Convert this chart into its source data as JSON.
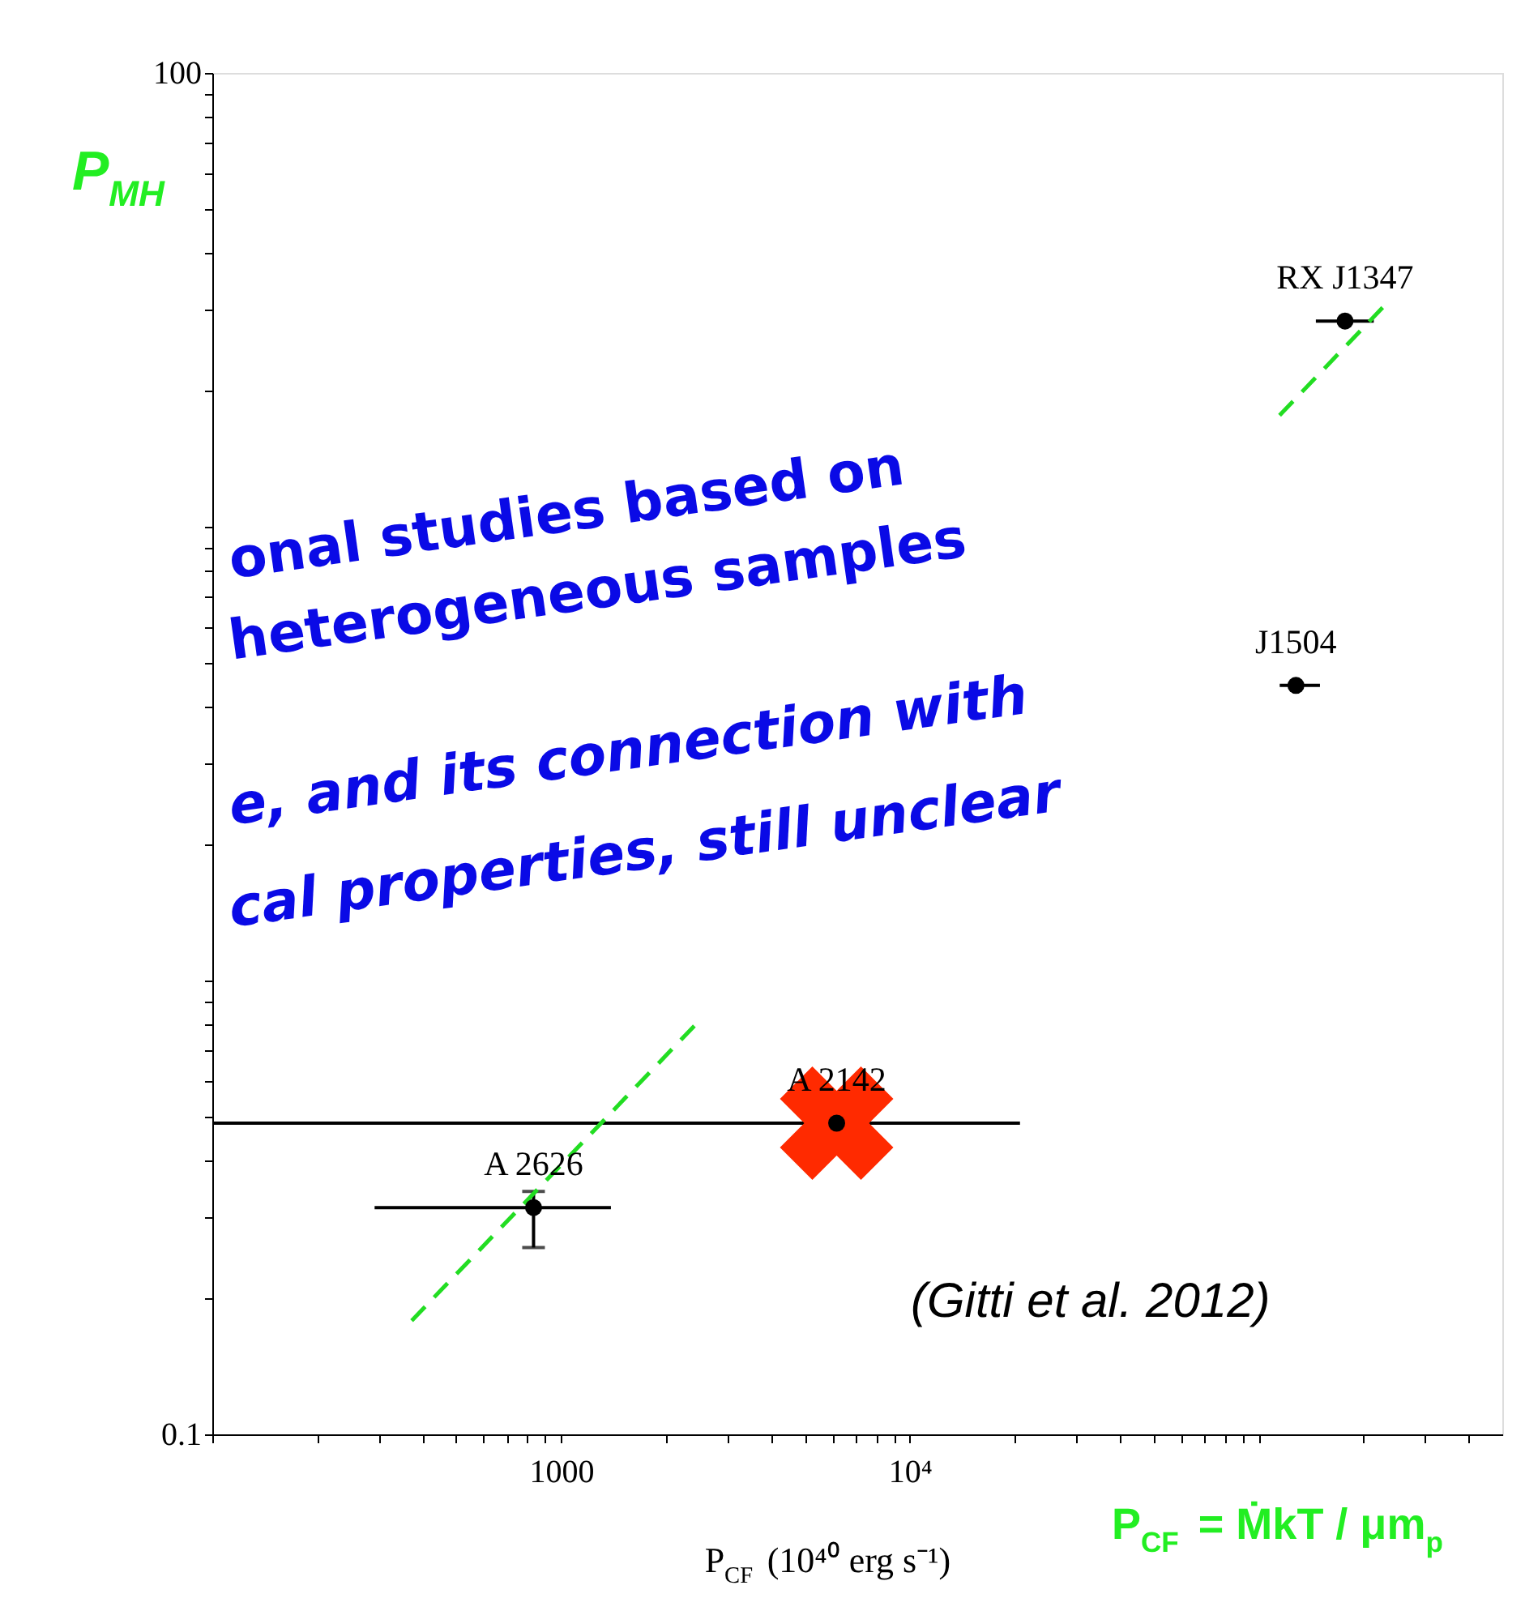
{
  "chart_data": {
    "type": "scatter",
    "xlabel": "P$_{CF}$ (10⁴⁰ erg s⁻¹)",
    "ylabel": "P$_{MH}$",
    "log": "xy",
    "xlim": [
      100,
      500000
    ],
    "xticks": [
      {
        "value": 100,
        "label": null
      },
      {
        "value": 200,
        "label": null
      },
      {
        "value": 300,
        "label": null
      },
      {
        "value": 400,
        "label": null
      },
      {
        "value": 500,
        "label": null
      },
      {
        "value": 600,
        "label": null
      },
      {
        "value": 700,
        "label": null
      },
      {
        "value": 800,
        "label": null
      },
      {
        "value": 900,
        "label": null
      },
      1000,
      {
        "value": 2000,
        "label": null
      },
      {
        "value": 3000,
        "label": null
      },
      {
        "value": 4000,
        "label": null
      },
      {
        "value": 5000,
        "label": null
      },
      {
        "value": 6000,
        "label": null
      },
      {
        "value": 7000,
        "label": null
      },
      {
        "value": 8000,
        "label": null
      },
      {
        "value": 9000,
        "label": null
      },
      {
        "value": 10000,
        "label": "10⁴"
      },
      {
        "value": 20000,
        "label": null
      },
      {
        "value": 30000,
        "label": null
      },
      {
        "value": 40000,
        "label": null
      },
      {
        "value": 50000,
        "label": null
      },
      {
        "value": 60000,
        "label": null
      },
      {
        "value": 70000,
        "label": null
      },
      {
        "value": 80000,
        "label": null
      },
      {
        "value": 90000,
        "label": null
      },
      {
        "value": 100000,
        "label": null
      },
      {
        "value": 200000,
        "label": null
      },
      {
        "value": 300000,
        "label": null
      },
      {
        "value": 400000,
        "label": null
      }
    ],
    "ylim": [
      0.1,
      100
    ],
    "yticks": [
      0.1,
      {
        "value": 0.2,
        "label": null
      },
      {
        "value": 0.3,
        "label": null
      },
      {
        "value": 0.4,
        "label": null
      },
      {
        "value": 0.5,
        "label": null
      },
      {
        "value": 0.6,
        "label": null
      },
      {
        "value": 0.7,
        "label": null
      },
      {
        "value": 0.8,
        "label": null
      },
      {
        "value": 0.9,
        "label": null
      },
      {
        "value": 1,
        "label": null
      },
      {
        "value": 2,
        "label": null
      },
      {
        "value": 3,
        "label": null
      },
      {
        "value": 4,
        "label": null
      },
      {
        "value": 5,
        "label": null
      },
      {
        "value": 6,
        "label": null
      },
      {
        "value": 7,
        "label": null
      },
      {
        "value": 8,
        "label": null
      },
      {
        "value": 9,
        "label": null
      },
      {
        "value": 10,
        "label": null
      },
      {
        "value": 20,
        "label": null
      },
      {
        "value": 30,
        "label": null
      },
      {
        "value": 40,
        "label": null
      },
      {
        "value": 50,
        "label": null
      },
      {
        "value": 60,
        "label": null
      },
      {
        "value": 70,
        "label": null
      },
      {
        "value": 80,
        "label": null
      },
      {
        "value": 90,
        "label": null
      },
      100
    ],
    "grid": false,
    "series": [
      {
        "type": "scatter",
        "color": "#000000",
        "marker": "circle",
        "x": [
          177000,
          128000,
          6170,
          834
        ],
        "values": [
          28.4,
          4.47,
          0.485,
          0.316
        ],
        "xerrors": [
          [
            146000,
            214000
          ],
          [
            115000,
            150000
          ],
          [
            100,
            20700
          ],
          [
            292,
            1390
          ]
        ],
        "errors": [
          null,
          null,
          null,
          [
            0.258,
            0.343
          ]
        ]
      },
      {
        "type": "scatter",
        "color": "#ff2a00",
        "marker": "cross",
        "x": [
          6170
        ],
        "values": [
          0.485
        ]
      },
      {
        "type": "line",
        "color": "#22dd22",
        "line_style": "dashed",
        "x": [
          373,
          2432,
          20000,
          114900,
          238000
        ],
        "values": [
          0.178,
          0.8,
          null,
          17.6,
          31.6
        ]
      }
    ],
    "annotations": [
      {
        "text": "RX J1347",
        "x": 177000,
        "y": 28.4
      },
      {
        "text": "J1504",
        "x": 128000,
        "y": 4.47
      },
      {
        "text": "A 2142",
        "x": 6170,
        "y": 0.485
      },
      {
        "text": "A 2626",
        "x": 834,
        "y": 0.316
      },
      "onal studies based on",
      "heterogeneous samples",
      "e, and its connection with",
      "cal properties, still unclear",
      "(Gitti et al. 2012)",
      "P$_{CF}$ = ṀkT / μm$_{p}$"
    ]
  }
}
